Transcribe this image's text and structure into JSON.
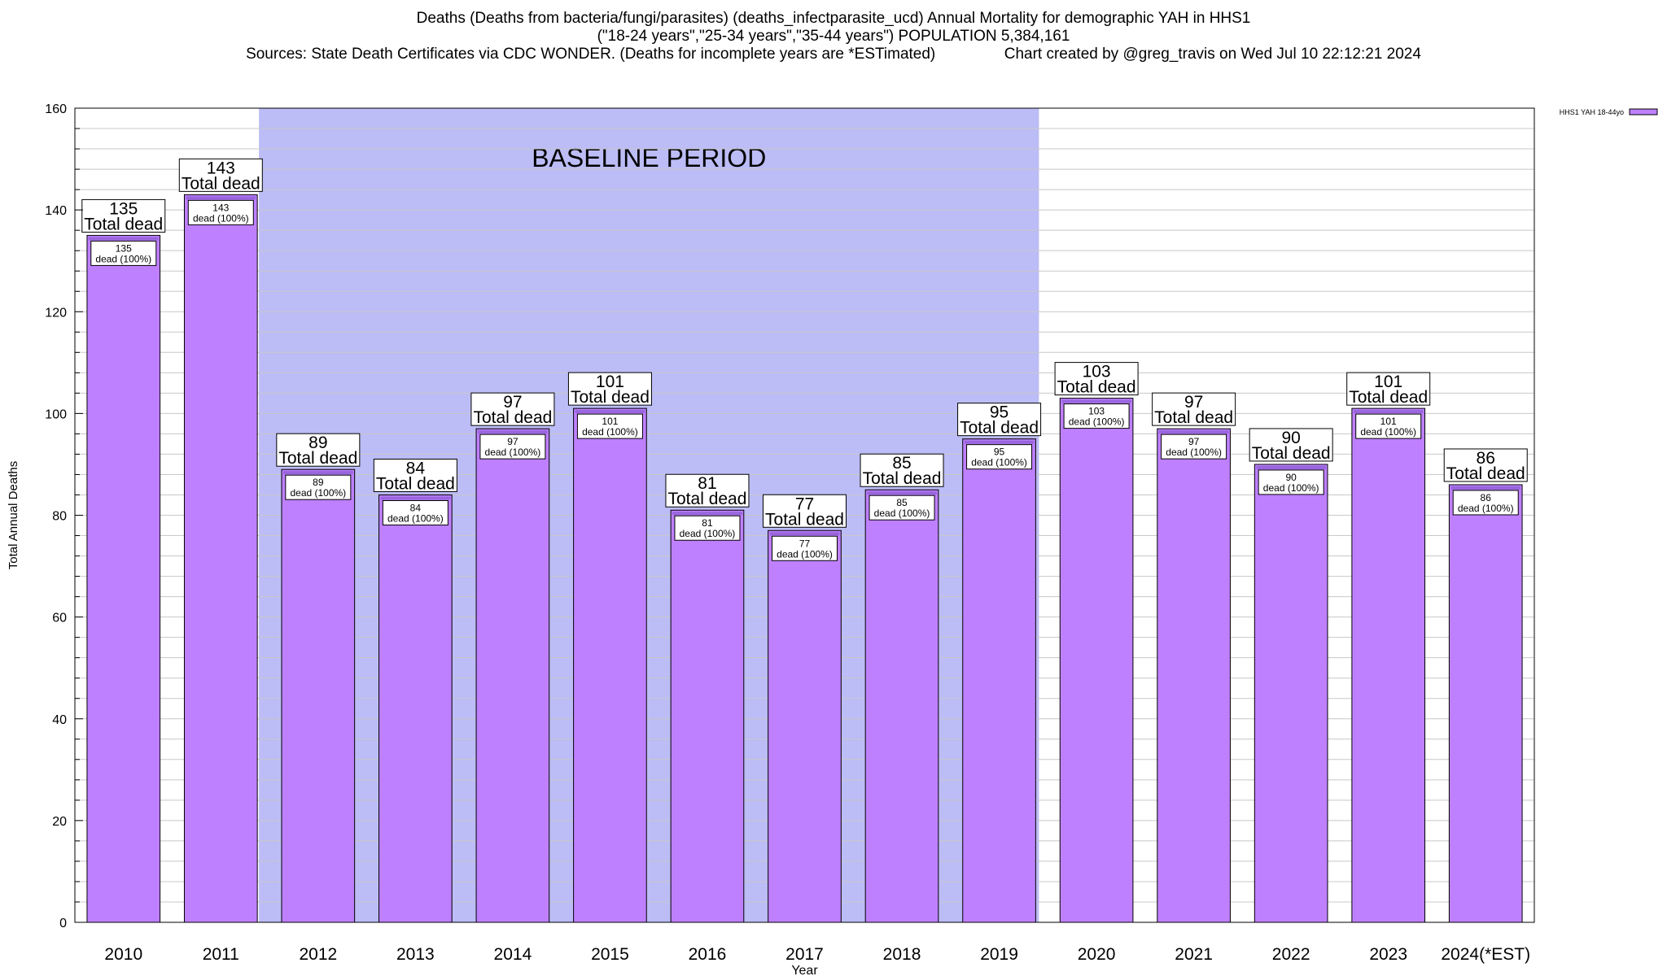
{
  "title_lines": [
    "Deaths (Deaths from bacteria/fungi/parasites) (deaths_infectparasite_ucd) Annual Mortality for demographic YAH in HHS1",
    "(\"18-24 years\",\"25-34 years\",\"35-44 years\") POPULATION 5,384,161",
    "Sources: State Death Certificates via CDC WONDER. (Deaths for incomplete years are *ESTimated)                Chart created by @greg_travis on Wed Jul 10 22:12:21 2024"
  ],
  "chart_data": {
    "type": "bar",
    "categories": [
      "2010",
      "2011",
      "2012",
      "2013",
      "2014",
      "2015",
      "2016",
      "2017",
      "2018",
      "2019",
      "2020",
      "2021",
      "2022",
      "2023",
      "2024(*EST)"
    ],
    "series": [
      {
        "name": "HHS1 YAH 18-44yo",
        "values": [
          135,
          143,
          89,
          84,
          97,
          101,
          81,
          77,
          85,
          95,
          103,
          97,
          90,
          101,
          86
        ]
      }
    ],
    "xlabel": "Year",
    "ylabel": "Total Annual Deaths",
    "ylim": [
      0,
      160
    ],
    "yticks": [
      0,
      20,
      40,
      60,
      80,
      100,
      120,
      140,
      160
    ],
    "minor_step": 4,
    "grid": true,
    "legend": "top-right",
    "bar_label_total_suffix": "Total dead",
    "bar_label_inner_suffix": "dead (100%)",
    "baseline_period": {
      "label": "BASELINE PERIOD",
      "from": "2012",
      "to": "2019"
    },
    "colors": {
      "bar": "#bf80ff",
      "bar_top": "#9966dd",
      "baseline_shade": "#bcbcf6",
      "grid": "#c8c8c8"
    }
  }
}
